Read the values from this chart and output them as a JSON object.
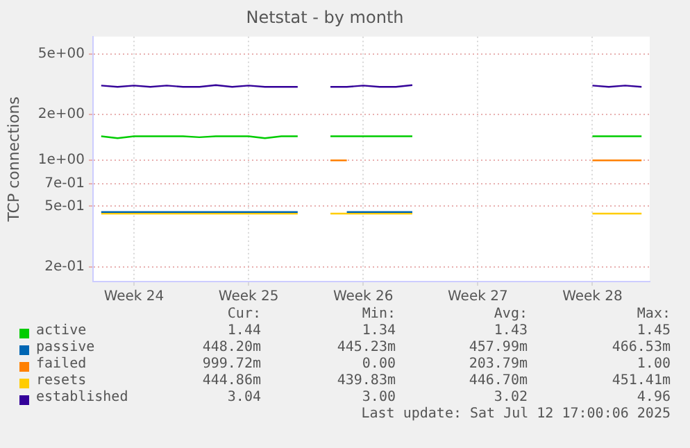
{
  "chart_data": {
    "type": "line",
    "title": "Netstat - by month",
    "ylabel": "TCP connections",
    "log": "y",
    "grid": true,
    "legend": "bottom",
    "ylim": [
      0.16,
      6.5
    ],
    "categories": [
      null,
      null,
      "Week 24",
      null,
      null,
      null,
      null,
      null,
      null,
      "Week 25",
      null,
      null,
      null,
      null,
      null,
      null,
      "Week 26",
      null,
      null,
      null,
      null,
      null,
      null,
      "Week 27",
      null,
      null,
      null,
      null,
      null,
      null,
      "Week 28",
      null,
      null,
      null
    ],
    "yticks": [
      {
        "value": 0.2,
        "label": "2e-01"
      },
      {
        "value": 0.5,
        "label": "5e-01"
      },
      {
        "value": 0.7,
        "label": "7e-01"
      },
      {
        "value": 1,
        "label": "1e+00"
      },
      {
        "value": 2,
        "label": "2e+00"
      },
      {
        "value": 5,
        "label": "5e+00"
      }
    ],
    "series": [
      {
        "name": "active",
        "color": "#00cc00",
        "values": [
          1.44,
          1.4,
          1.44,
          1.44,
          1.44,
          1.44,
          1.42,
          1.44,
          1.44,
          1.44,
          1.4,
          1.44,
          1.44,
          null,
          1.44,
          1.44,
          1.44,
          1.44,
          1.44,
          1.44,
          null,
          null,
          null,
          null,
          null,
          null,
          null,
          null,
          null,
          null,
          1.44,
          1.44,
          1.44,
          1.44
        ]
      },
      {
        "name": "passive",
        "color": "#0066b3",
        "values": [
          0.458,
          0.458,
          0.458,
          0.458,
          0.458,
          0.458,
          0.458,
          0.458,
          0.458,
          0.458,
          0.458,
          0.458,
          0.458,
          null,
          null,
          0.458,
          0.458,
          0.458,
          0.458,
          0.458,
          null,
          null,
          null,
          null,
          null,
          null,
          null,
          null,
          null,
          null,
          null,
          null,
          null,
          null
        ]
      },
      {
        "name": "failed",
        "color": "#ff8000",
        "values": [
          null,
          null,
          null,
          null,
          null,
          null,
          null,
          null,
          null,
          null,
          null,
          null,
          null,
          null,
          1.0,
          1.0,
          null,
          null,
          null,
          null,
          null,
          null,
          null,
          null,
          null,
          null,
          null,
          null,
          null,
          null,
          1.0,
          1.0,
          1.0,
          1.0
        ]
      },
      {
        "name": "resets",
        "color": "#ffcc00",
        "values": [
          0.447,
          0.447,
          0.447,
          0.447,
          0.447,
          0.447,
          0.447,
          0.447,
          0.447,
          0.447,
          0.447,
          0.447,
          0.447,
          null,
          0.447,
          0.447,
          0.447,
          0.447,
          0.447,
          0.447,
          null,
          null,
          null,
          null,
          null,
          null,
          null,
          null,
          null,
          null,
          0.447,
          0.447,
          0.447,
          0.447
        ]
      },
      {
        "name": "established",
        "color": "#330099",
        "values": [
          3.1,
          3.04,
          3.1,
          3.04,
          3.1,
          3.04,
          3.04,
          3.12,
          3.04,
          3.1,
          3.04,
          3.04,
          3.04,
          null,
          3.04,
          3.04,
          3.1,
          3.04,
          3.04,
          3.12,
          null,
          null,
          null,
          null,
          null,
          null,
          null,
          null,
          null,
          null,
          3.1,
          3.04,
          3.1,
          3.04
        ]
      }
    ],
    "annotations": [
      "Cur:",
      "Min:",
      "Avg:",
      "Max:",
      "1.44",
      "1.34",
      "1.43",
      "1.45",
      "448.20m",
      "445.23m",
      "457.99m",
      "466.53m",
      "999.72m",
      "0.00",
      "203.79m",
      "1.00",
      "444.86m",
      "439.83m",
      "446.70m",
      "451.41m",
      "3.04",
      "3.00",
      "3.02",
      "4.96",
      "Last update: Sat Jul 12 17:00:06 2025"
    ]
  }
}
